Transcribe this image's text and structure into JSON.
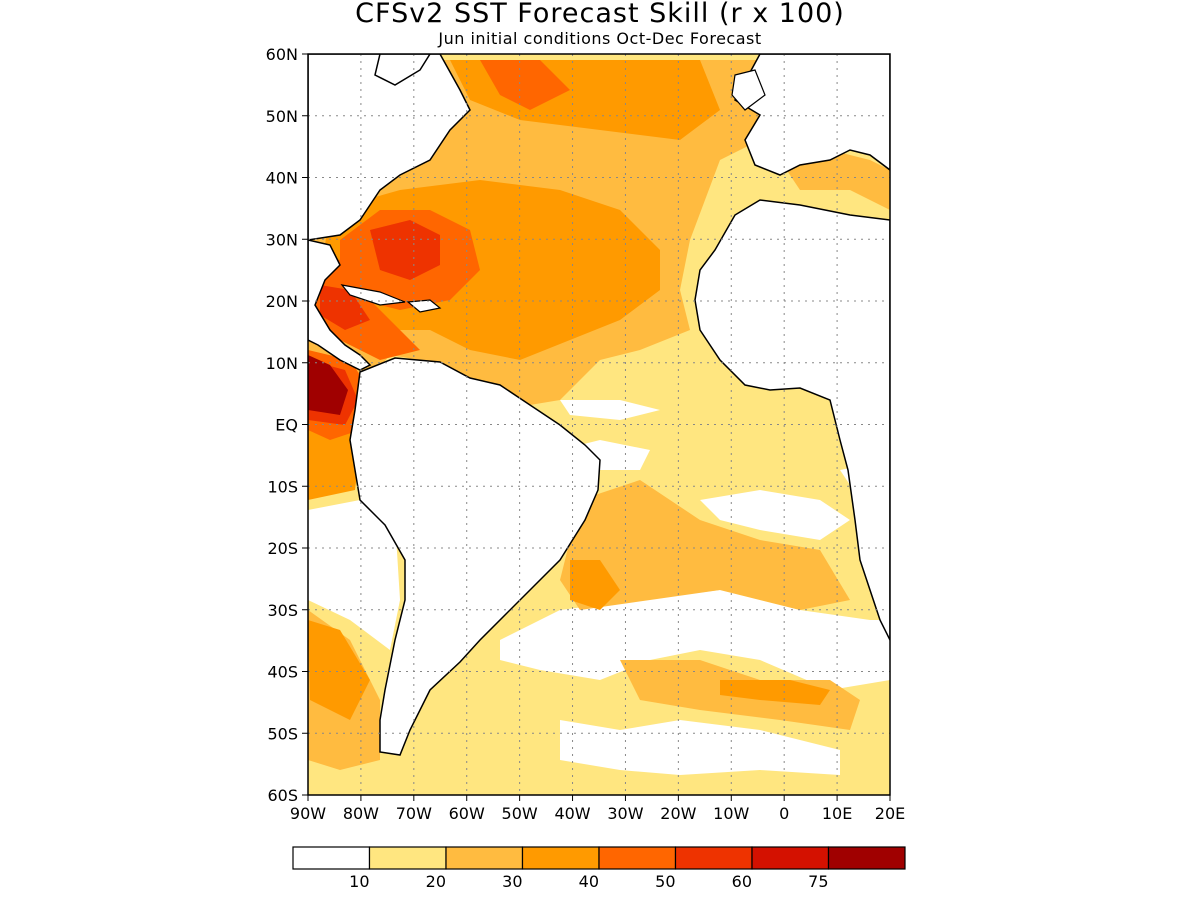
{
  "title": "CFSv2 SST Forecast Skill (r x 100)",
  "subtitle": "Jun initial conditions  Oct-Dec Forecast",
  "map": {
    "lon_range": [
      -90,
      20
    ],
    "lat_range": [
      -60,
      60
    ],
    "lat_ticks": [
      {
        "value": 60,
        "label": "60N"
      },
      {
        "value": 50,
        "label": "50N"
      },
      {
        "value": 40,
        "label": "40N"
      },
      {
        "value": 30,
        "label": "30N"
      },
      {
        "value": 20,
        "label": "20N"
      },
      {
        "value": 10,
        "label": "10N"
      },
      {
        "value": 0,
        "label": "EQ"
      },
      {
        "value": -10,
        "label": "10S"
      },
      {
        "value": -20,
        "label": "20S"
      },
      {
        "value": -30,
        "label": "30S"
      },
      {
        "value": -40,
        "label": "40S"
      },
      {
        "value": -50,
        "label": "50S"
      },
      {
        "value": -60,
        "label": "60S"
      }
    ],
    "lon_ticks": [
      {
        "value": -90,
        "label": "90W"
      },
      {
        "value": -80,
        "label": "80W"
      },
      {
        "value": -70,
        "label": "70W"
      },
      {
        "value": -60,
        "label": "60W"
      },
      {
        "value": -50,
        "label": "50W"
      },
      {
        "value": -40,
        "label": "40W"
      },
      {
        "value": -30,
        "label": "30W"
      },
      {
        "value": -20,
        "label": "20W"
      },
      {
        "value": -10,
        "label": "10W"
      },
      {
        "value": 0,
        "label": "0"
      },
      {
        "value": 10,
        "label": "10E"
      },
      {
        "value": 20,
        "label": "20E"
      }
    ],
    "grid": true
  },
  "colorbar": {
    "colors": [
      "#ffffff",
      "#ffe680",
      "#ffbb40",
      "#ff9a00",
      "#ff6600",
      "#ee3300",
      "#d41100",
      "#a00000"
    ],
    "labels": [
      "10",
      "20",
      "30",
      "40",
      "50",
      "60",
      "75"
    ]
  },
  "colors": {
    "land": "#ffffff",
    "coast": "#000000",
    "grid": "#888888"
  }
}
